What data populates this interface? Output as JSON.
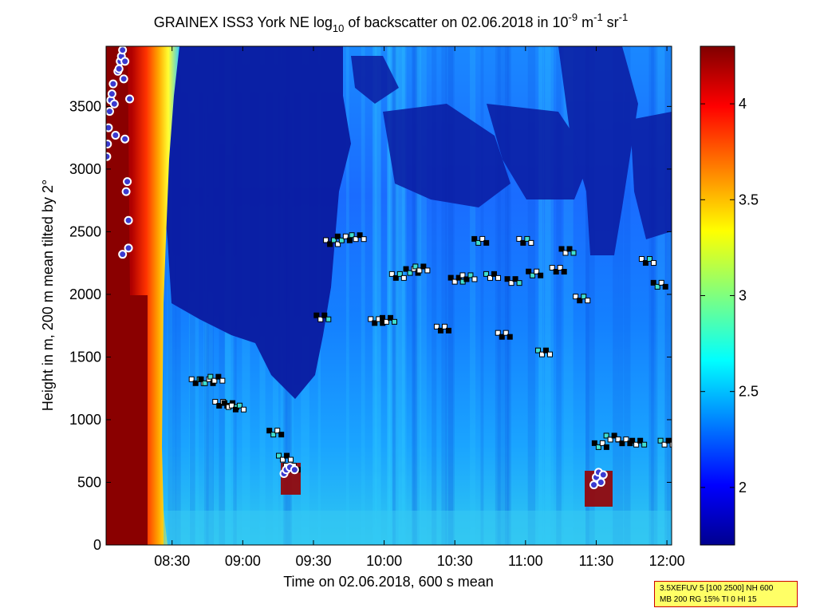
{
  "chart_data": {
    "type": "heatmap",
    "title_main": "GRAINEX ISS3 York NE log",
    "title_sub": "10",
    "title_mid": " of backscatter on 02.06.2018 in 10",
    "title_exp1": "-9",
    "title_unit1": " m",
    "title_exp2": "-1",
    "title_unit2": " sr",
    "title_exp3": "-1",
    "xlabel": "Time on 02.06.2018, 600 s mean",
    "ylabel": "Height in m, 200 m mean tilted by 2°",
    "x_range_minutes": [
      482,
      722
    ],
    "x_ticks": [
      {
        "min": 510,
        "label": "08:30"
      },
      {
        "min": 540,
        "label": "09:00"
      },
      {
        "min": 570,
        "label": "09:30"
      },
      {
        "min": 600,
        "label": "10:00"
      },
      {
        "min": 630,
        "label": "10:30"
      },
      {
        "min": 660,
        "label": "11:00"
      },
      {
        "min": 690,
        "label": "11:30"
      },
      {
        "min": 720,
        "label": "12:00"
      }
    ],
    "ylim": [
      0,
      3980
    ],
    "y_ticks": [
      0,
      500,
      1000,
      1500,
      2000,
      2500,
      3000,
      3500
    ],
    "colorbar": {
      "range": [
        1.7,
        4.3
      ],
      "ticks": [
        2,
        2.5,
        3,
        3.5,
        4
      ],
      "tick_labels": [
        "2",
        "2.5",
        "3",
        "3.5",
        "4"
      ],
      "colormap": "jet"
    },
    "cloud_base_markers": [
      {
        "t": 521,
        "h": 1310
      },
      {
        "t": 525,
        "h": 1310
      },
      {
        "t": 529,
        "h": 1330
      },
      {
        "t": 531,
        "h": 1130
      },
      {
        "t": 535,
        "h": 1120
      },
      {
        "t": 538,
        "h": 1100
      },
      {
        "t": 554,
        "h": 900
      },
      {
        "t": 558,
        "h": 700
      },
      {
        "t": 561,
        "h": 620
      },
      {
        "t": 574,
        "h": 1820
      },
      {
        "t": 578,
        "h": 2420
      },
      {
        "t": 583,
        "h": 2450
      },
      {
        "t": 589,
        "h": 2460
      },
      {
        "t": 597,
        "h": 1790
      },
      {
        "t": 602,
        "h": 1800
      },
      {
        "t": 606,
        "h": 2150
      },
      {
        "t": 612,
        "h": 2190
      },
      {
        "t": 616,
        "h": 2210
      },
      {
        "t": 625,
        "h": 1730
      },
      {
        "t": 631,
        "h": 2120
      },
      {
        "t": 636,
        "h": 2140
      },
      {
        "t": 641,
        "h": 2430
      },
      {
        "t": 646,
        "h": 2150
      },
      {
        "t": 651,
        "h": 1680
      },
      {
        "t": 655,
        "h": 2110
      },
      {
        "t": 660,
        "h": 2430
      },
      {
        "t": 664,
        "h": 2170
      },
      {
        "t": 668,
        "h": 1540
      },
      {
        "t": 674,
        "h": 2200
      },
      {
        "t": 678,
        "h": 2350
      },
      {
        "t": 684,
        "h": 1970
      },
      {
        "t": 692,
        "h": 800
      },
      {
        "t": 697,
        "h": 860
      },
      {
        "t": 702,
        "h": 830
      },
      {
        "t": 708,
        "h": 820
      },
      {
        "t": 712,
        "h": 2270
      },
      {
        "t": 717,
        "h": 2080
      },
      {
        "t": 720,
        "h": 820
      }
    ],
    "precip_markers": [
      {
        "t": 482.3,
        "h": 3100
      },
      {
        "t": 482.6,
        "h": 3200
      },
      {
        "t": 483,
        "h": 3330
      },
      {
        "t": 483.5,
        "h": 3460
      },
      {
        "t": 484,
        "h": 3550
      },
      {
        "t": 484.5,
        "h": 3600
      },
      {
        "t": 485,
        "h": 3680
      },
      {
        "t": 485.5,
        "h": 3520
      },
      {
        "t": 486,
        "h": 3270
      },
      {
        "t": 487,
        "h": 3780
      },
      {
        "t": 487.5,
        "h": 3800
      },
      {
        "t": 488,
        "h": 3860
      },
      {
        "t": 488.5,
        "h": 3900
      },
      {
        "t": 489,
        "h": 3950
      },
      {
        "t": 489.5,
        "h": 3720
      },
      {
        "t": 490,
        "h": 3240
      },
      {
        "t": 490.5,
        "h": 2820
      },
      {
        "t": 491,
        "h": 2900
      },
      {
        "t": 491.5,
        "h": 2590
      },
      {
        "t": 492,
        "h": 3560
      },
      {
        "t": 489,
        "h": 2320
      },
      {
        "t": 491.5,
        "h": 2370
      },
      {
        "t": 490,
        "h": 3860
      },
      {
        "t": 557.5,
        "h": 570
      },
      {
        "t": 558.5,
        "h": 600
      },
      {
        "t": 560,
        "h": 620
      },
      {
        "t": 562,
        "h": 600
      },
      {
        "t": 689,
        "h": 480
      },
      {
        "t": 690,
        "h": 540
      },
      {
        "t": 691,
        "h": 580
      },
      {
        "t": 692,
        "h": 500
      },
      {
        "t": 693,
        "h": 560
      }
    ]
  },
  "infobox": {
    "line1": "3.5XEFUV 5 [100 2500] NH 600",
    "line2": "MB 200 RG 15% TI 0 HI 15"
  }
}
